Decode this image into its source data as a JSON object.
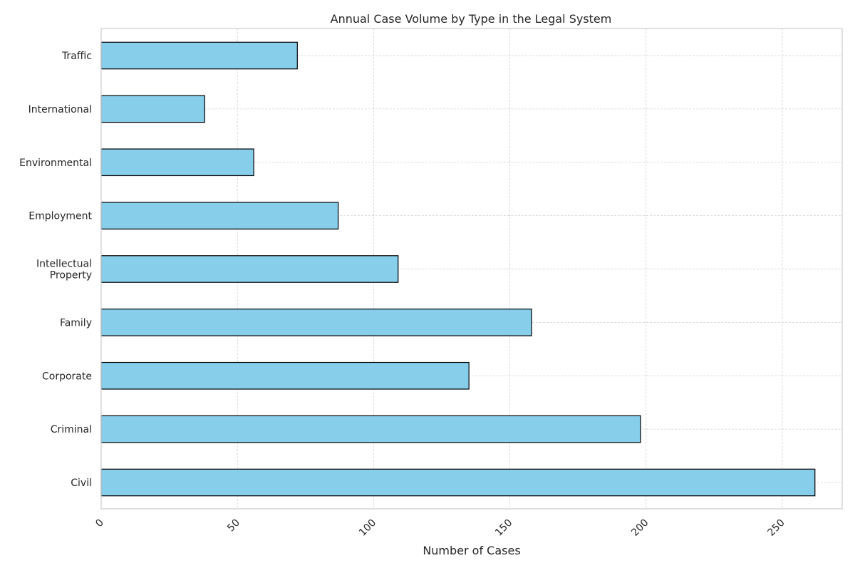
{
  "chart_data": {
    "type": "bar",
    "orientation": "horizontal",
    "title": "Annual Case Volume by Type in the Legal System",
    "xlabel": "Number of Cases",
    "ylabel": "",
    "categories": [
      "Civil",
      "Criminal",
      "Corporate",
      "Family",
      "Intellectual Property",
      "Employment",
      "Environmental",
      "International",
      "Traffic"
    ],
    "category_lines": [
      [
        "Civil"
      ],
      [
        "Criminal"
      ],
      [
        "Corporate"
      ],
      [
        "Family"
      ],
      [
        "Intellectual",
        "Property"
      ],
      [
        "Employment"
      ],
      [
        "Environmental"
      ],
      [
        "International"
      ],
      [
        "Traffic"
      ]
    ],
    "values": [
      262,
      198,
      135,
      158,
      109,
      87,
      56,
      38,
      72
    ],
    "xlim": [
      0,
      272
    ],
    "xticks": [
      0,
      50,
      100,
      150,
      200,
      250
    ],
    "grid": true,
    "legend": "none",
    "colors": {
      "bar_fill": "#87CEEB",
      "bar_edge": "#000000",
      "grid": "#d0d0d0",
      "frame": "#cccccc"
    }
  }
}
